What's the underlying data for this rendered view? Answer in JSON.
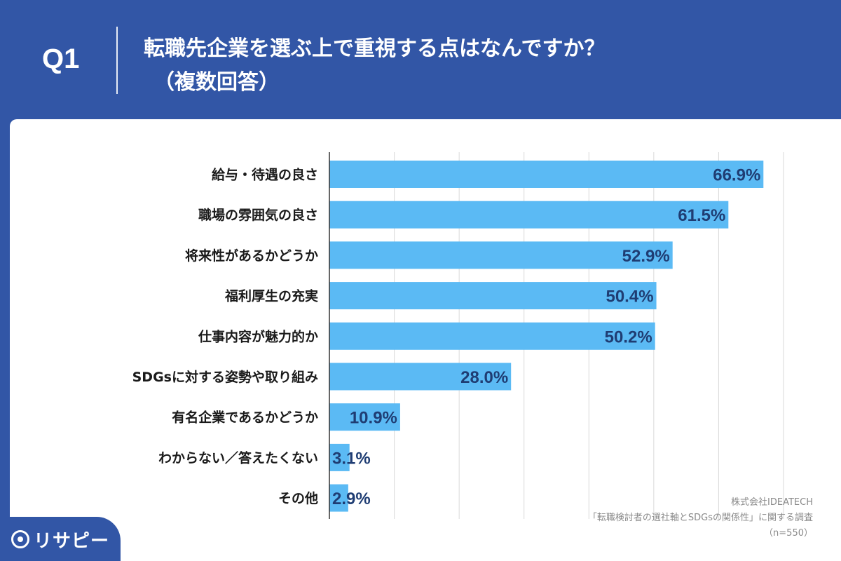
{
  "question": {
    "number": "Q1",
    "title_line1": "転職先企業を選ぶ上で重視する点はなんですか？",
    "title_line2": "（複数回答）"
  },
  "chart_data": {
    "type": "bar",
    "orientation": "horizontal",
    "categories": [
      "給与・待遇の良さ",
      "職場の雰囲気の良さ",
      "将来性があるかどうか",
      "福利厚生の充実",
      "仕事内容が魅力的か",
      "SDGsに対する姿勢や取り組み",
      "有名企業であるかどうか",
      "わからない／答えたくない",
      "その他"
    ],
    "values": [
      66.9,
      61.5,
      52.9,
      50.4,
      50.2,
      28.0,
      10.9,
      3.1,
      2.9
    ],
    "value_labels": [
      "66.9%",
      "61.5%",
      "52.9%",
      "50.4%",
      "50.2%",
      "28.0%",
      "10.9%",
      "3.1%",
      "2.9%"
    ],
    "xlim": [
      0,
      70
    ],
    "grid": true,
    "colors": {
      "bar": "#5bbaf4",
      "value_text": "#1f3d73",
      "grid": "#d9d9d9",
      "axis": "#333333"
    }
  },
  "footnote": {
    "source": "株式会社IDEATECH",
    "survey": "「転職検討者の選社軸とSDGsの関係性」に関する調査",
    "sample": "（n=550）"
  },
  "logo": {
    "text": "リサピー",
    "icon": "pin-icon"
  },
  "colors": {
    "header_bg": "#3256a6",
    "panel_bg": "#ffffff"
  }
}
